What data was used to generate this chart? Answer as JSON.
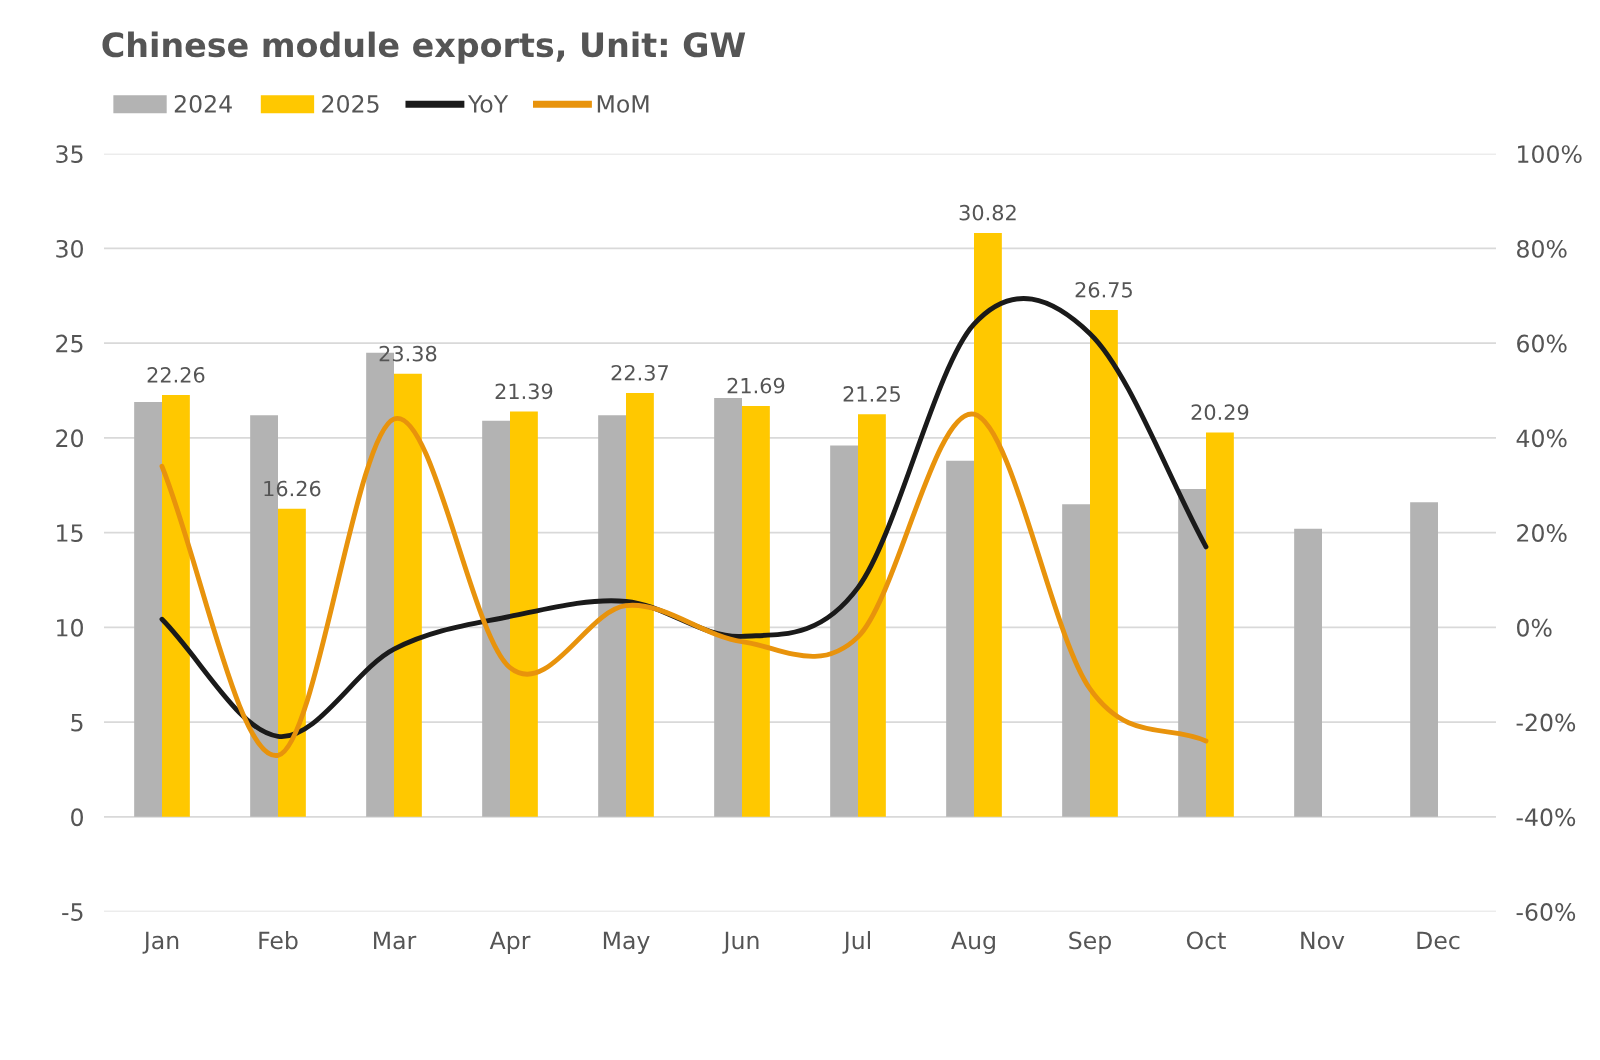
{
  "chart_data": {
    "type": "bar",
    "title": "Chinese module exports, Unit: GW",
    "categories": [
      "Jan",
      "Feb",
      "Mar",
      "Apr",
      "May",
      "Jun",
      "Jul",
      "Aug",
      "Sep",
      "Oct",
      "Nov",
      "Dec"
    ],
    "series": [
      {
        "name": "2024",
        "color": "#b3b3b3",
        "values": [
          21.9,
          21.2,
          24.5,
          20.9,
          21.2,
          22.1,
          19.6,
          18.8,
          16.5,
          17.3,
          15.2,
          16.6
        ]
      },
      {
        "name": "2025",
        "color": "#ffc800",
        "values": [
          22.26,
          16.26,
          23.38,
          21.39,
          22.37,
          21.69,
          21.25,
          30.82,
          26.75,
          20.29,
          null,
          null
        ],
        "value_labels": [
          "22.26",
          "16.26",
          "23.38",
          "21.39",
          "22.37",
          "21.69",
          "21.25",
          "30.82",
          "26.75",
          "20.29",
          null,
          null
        ]
      },
      {
        "name": "YoY",
        "type": "line",
        "axis": "y2",
        "color": "#1a1a1a",
        "values": [
          1.7,
          -23,
          -4.6,
          2.3,
          5.5,
          -1.9,
          8.4,
          64,
          62,
          17,
          null,
          null
        ]
      },
      {
        "name": "MoM",
        "type": "line",
        "axis": "y2",
        "color": "#e8930c",
        "values": [
          34,
          -27,
          44,
          -8.5,
          4.6,
          -3,
          -2,
          45,
          -13,
          -24,
          null,
          null
        ]
      }
    ],
    "ylim": [
      -5,
      35
    ],
    "yticks": [
      -5,
      0,
      5,
      10,
      15,
      20,
      25,
      30,
      35
    ],
    "y2lim": [
      -60,
      100
    ],
    "y2ticks": [
      {
        "value": -60,
        "label": "-60%"
      },
      {
        "value": -40,
        "label": "-40%"
      },
      {
        "value": -20,
        "label": "-20%"
      },
      {
        "value": 0,
        "label": "0%"
      },
      {
        "value": 20,
        "label": "20%"
      },
      {
        "value": 40,
        "label": "40%"
      },
      {
        "value": 60,
        "label": "60%"
      },
      {
        "value": 80,
        "label": "80%"
      },
      {
        "value": 100,
        "label": "100%"
      }
    ],
    "grid": "y",
    "legend": "top left"
  }
}
